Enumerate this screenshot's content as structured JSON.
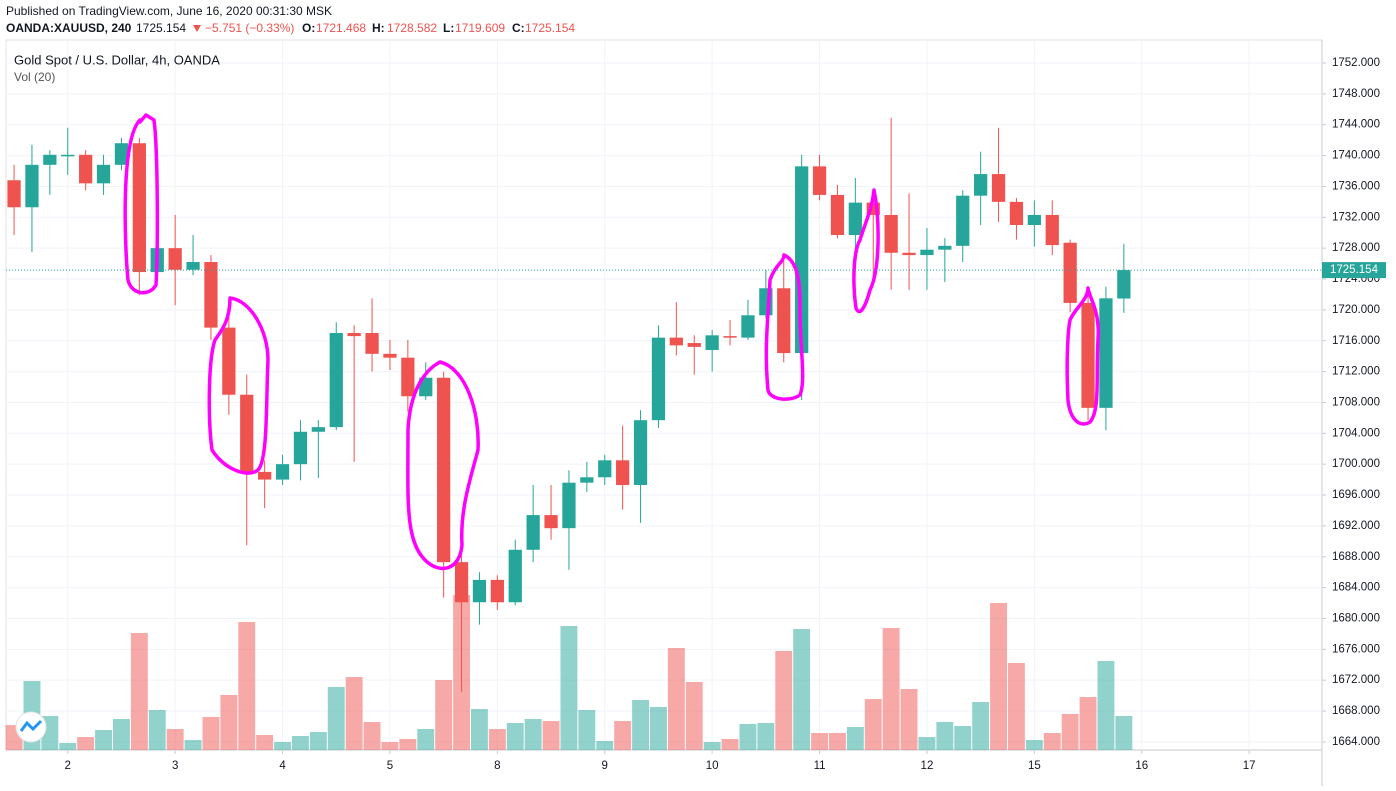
{
  "header": {
    "published": "Published on TradingView.com, June 16, 2020 00:31:30 MSK",
    "symbol": "OANDA:XAUUSD, 240",
    "price": "1725.154",
    "change": "−5.751 (−0.33%)",
    "o_label": "O:",
    "o": "1721.468",
    "h_label": "H:",
    "h": "1728.582",
    "l_label": "L:",
    "l": "1719.609",
    "c_label": "C:",
    "c": "1725.154"
  },
  "chart_data": {
    "type": "candlestick",
    "title": "Gold Spot / U.S. Dollar, 4h, OANDA",
    "volume_label": "Vol (20)",
    "up_color": "#26a69a",
    "down_color": "#ef5350",
    "open": [
      1736.8,
      1733.3,
      1738.8,
      1739.9,
      1740.1,
      1736.4,
      1738.8,
      1741.6,
      1724.9,
      1728.0,
      1725.2,
      1726.2,
      1717.7,
      1709.0,
      1699.0,
      1698.0,
      1700.0,
      1704.2,
      1704.8,
      1717.0,
      1717.0,
      1714.3,
      1713.8,
      1708.8,
      1711.2,
      1687.3,
      1682.1,
      1685.0,
      1682.1,
      1688.9,
      1693.4,
      1691.7,
      1697.6,
      1698.3,
      1700.5,
      1697.3,
      1705.7,
      1716.4,
      1715.7,
      1714.8,
      1716.6,
      1716.4,
      1719.3,
      1722.8,
      1714.4,
      1738.6,
      1734.9,
      1729.7,
      1733.9,
      1732.3,
      1727.4,
      1727.1,
      1727.8,
      1728.3,
      1734.8,
      1737.6,
      1734.0,
      1731.0,
      1732.3,
      1728.7,
      1720.9,
      1707.3,
      1721.468
    ],
    "high": [
      1738.8,
      1741.4,
      1740.7,
      1743.6,
      1740.7,
      1740.1,
      1742.3,
      1742.3,
      1729.1,
      1732.3,
      1729.7,
      1727.1,
      1721.3,
      1711.6,
      1700.5,
      1701.2,
      1705.7,
      1705.7,
      1718.4,
      1718.0,
      1721.5,
      1716.1,
      1716.1,
      1713.2,
      1712.0,
      1688.2,
      1686.0,
      1685.6,
      1690.2,
      1697.3,
      1697.3,
      1699.2,
      1700.3,
      1701.2,
      1705.0,
      1707.0,
      1718.0,
      1721.0,
      1716.7,
      1717.4,
      1718.7,
      1721.3,
      1725.2,
      1726.7,
      1740.1,
      1740.1,
      1736.2,
      1737.1,
      1734.9,
      1744.9,
      1735.1,
      1730.6,
      1729.3,
      1735.5,
      1740.5,
      1743.6,
      1734.5,
      1734.2,
      1734.2,
      1729.1,
      1722.6,
      1723.0,
      1728.582
    ],
    "low": [
      1729.7,
      1727.5,
      1734.9,
      1737.5,
      1735.5,
      1734.9,
      1738.1,
      1721.9,
      1723.9,
      1720.6,
      1724.5,
      1716.1,
      1706.4,
      1689.5,
      1694.3,
      1697.3,
      1697.9,
      1698.2,
      1704.4,
      1700.3,
      1712.0,
      1712.2,
      1706.8,
      1708.3,
      1682.7,
      1670.5,
      1679.2,
      1681.1,
      1681.7,
      1687.3,
      1690.2,
      1686.3,
      1696.4,
      1697.3,
      1694.1,
      1692.4,
      1704.7,
      1714.1,
      1711.6,
      1712.0,
      1715.4,
      1716.1,
      1718.9,
      1713.2,
      1708.3,
      1734.2,
      1729.3,
      1726.2,
      1723.2,
      1722.6,
      1722.6,
      1722.6,
      1723.6,
      1726.2,
      1731.0,
      1731.4,
      1729.1,
      1728.2,
      1727.1,
      1719.7,
      1705.7,
      1704.4,
      1719.609
    ],
    "close": [
      1733.3,
      1738.8,
      1740.1,
      1740.1,
      1736.4,
      1738.8,
      1741.6,
      1724.9,
      1728.0,
      1725.2,
      1726.2,
      1717.7,
      1709.0,
      1699.0,
      1698.0,
      1700.0,
      1704.2,
      1704.8,
      1717.0,
      1716.6,
      1714.3,
      1713.8,
      1708.8,
      1711.2,
      1687.3,
      1682.1,
      1685.0,
      1682.1,
      1688.9,
      1693.4,
      1691.7,
      1697.6,
      1698.3,
      1700.5,
      1697.3,
      1705.7,
      1716.4,
      1715.4,
      1715.2,
      1716.7,
      1716.4,
      1719.3,
      1722.8,
      1714.4,
      1738.6,
      1734.9,
      1729.7,
      1733.9,
      1732.3,
      1727.4,
      1727.1,
      1727.8,
      1728.3,
      1734.8,
      1737.6,
      1734.0,
      1731.0,
      1732.3,
      1728.4,
      1720.9,
      1707.3,
      1721.5,
      1725.154
    ],
    "volume": [
      25,
      69,
      34,
      7,
      13,
      20,
      31,
      117,
      40,
      21,
      10,
      33,
      55,
      128,
      15,
      8,
      14,
      18,
      63,
      73,
      28,
      8,
      11,
      21,
      70,
      155,
      41,
      21,
      27,
      31,
      29,
      124,
      40,
      9,
      29,
      50,
      43,
      102,
      68,
      8,
      11,
      26,
      27,
      99,
      121,
      17,
      17,
      23,
      51,
      122,
      61,
      13,
      28,
      24,
      48,
      147,
      87,
      10,
      17,
      36,
      53,
      89,
      34
    ],
    "last_price": 1725.154,
    "last_price_label": "1725.154",
    "xlim": [
      -0.45,
      73.07
    ],
    "xticks": [
      {
        "value": 3,
        "label": "2"
      },
      {
        "value": 9,
        "label": "3"
      },
      {
        "value": 15,
        "label": "4"
      },
      {
        "value": 21,
        "label": "5"
      },
      {
        "value": 27,
        "label": "8"
      },
      {
        "value": 33,
        "label": "9"
      },
      {
        "value": 39,
        "label": "10"
      },
      {
        "value": 45,
        "label": "11"
      },
      {
        "value": 51,
        "label": "12"
      },
      {
        "value": 57,
        "label": "15"
      },
      {
        "value": 63,
        "label": "16"
      },
      {
        "value": 69,
        "label": "17"
      }
    ],
    "ylim": [
      1662.95,
      1754.98
    ],
    "yticks": [
      {
        "value": 1664,
        "label": "1664.000"
      },
      {
        "value": 1668,
        "label": "1668.000"
      },
      {
        "value": 1672,
        "label": "1672.000"
      },
      {
        "value": 1676,
        "label": "1676.000"
      },
      {
        "value": 1680,
        "label": "1680.000"
      },
      {
        "value": 1684,
        "label": "1684.000"
      },
      {
        "value": 1688,
        "label": "1688.000"
      },
      {
        "value": 1692,
        "label": "1692.000"
      },
      {
        "value": 1696,
        "label": "1696.000"
      },
      {
        "value": 1700,
        "label": "1700.000"
      },
      {
        "value": 1704,
        "label": "1704.000"
      },
      {
        "value": 1708,
        "label": "1708.000"
      },
      {
        "value": 1712,
        "label": "1712.000"
      },
      {
        "value": 1716,
        "label": "1716.000"
      },
      {
        "value": 1720,
        "label": "1720.000"
      },
      {
        "value": 1724,
        "label": "1724.000"
      },
      {
        "value": 1728,
        "label": "1728.000"
      },
      {
        "value": 1732,
        "label": "1732.000"
      },
      {
        "value": 1736,
        "label": "1736.000"
      },
      {
        "value": 1740,
        "label": "1740.000"
      },
      {
        "value": 1744,
        "label": "1744.000"
      },
      {
        "value": 1748,
        "label": "1748.000"
      },
      {
        "value": 1752,
        "label": "1752.000"
      }
    ],
    "grid": true
  }
}
